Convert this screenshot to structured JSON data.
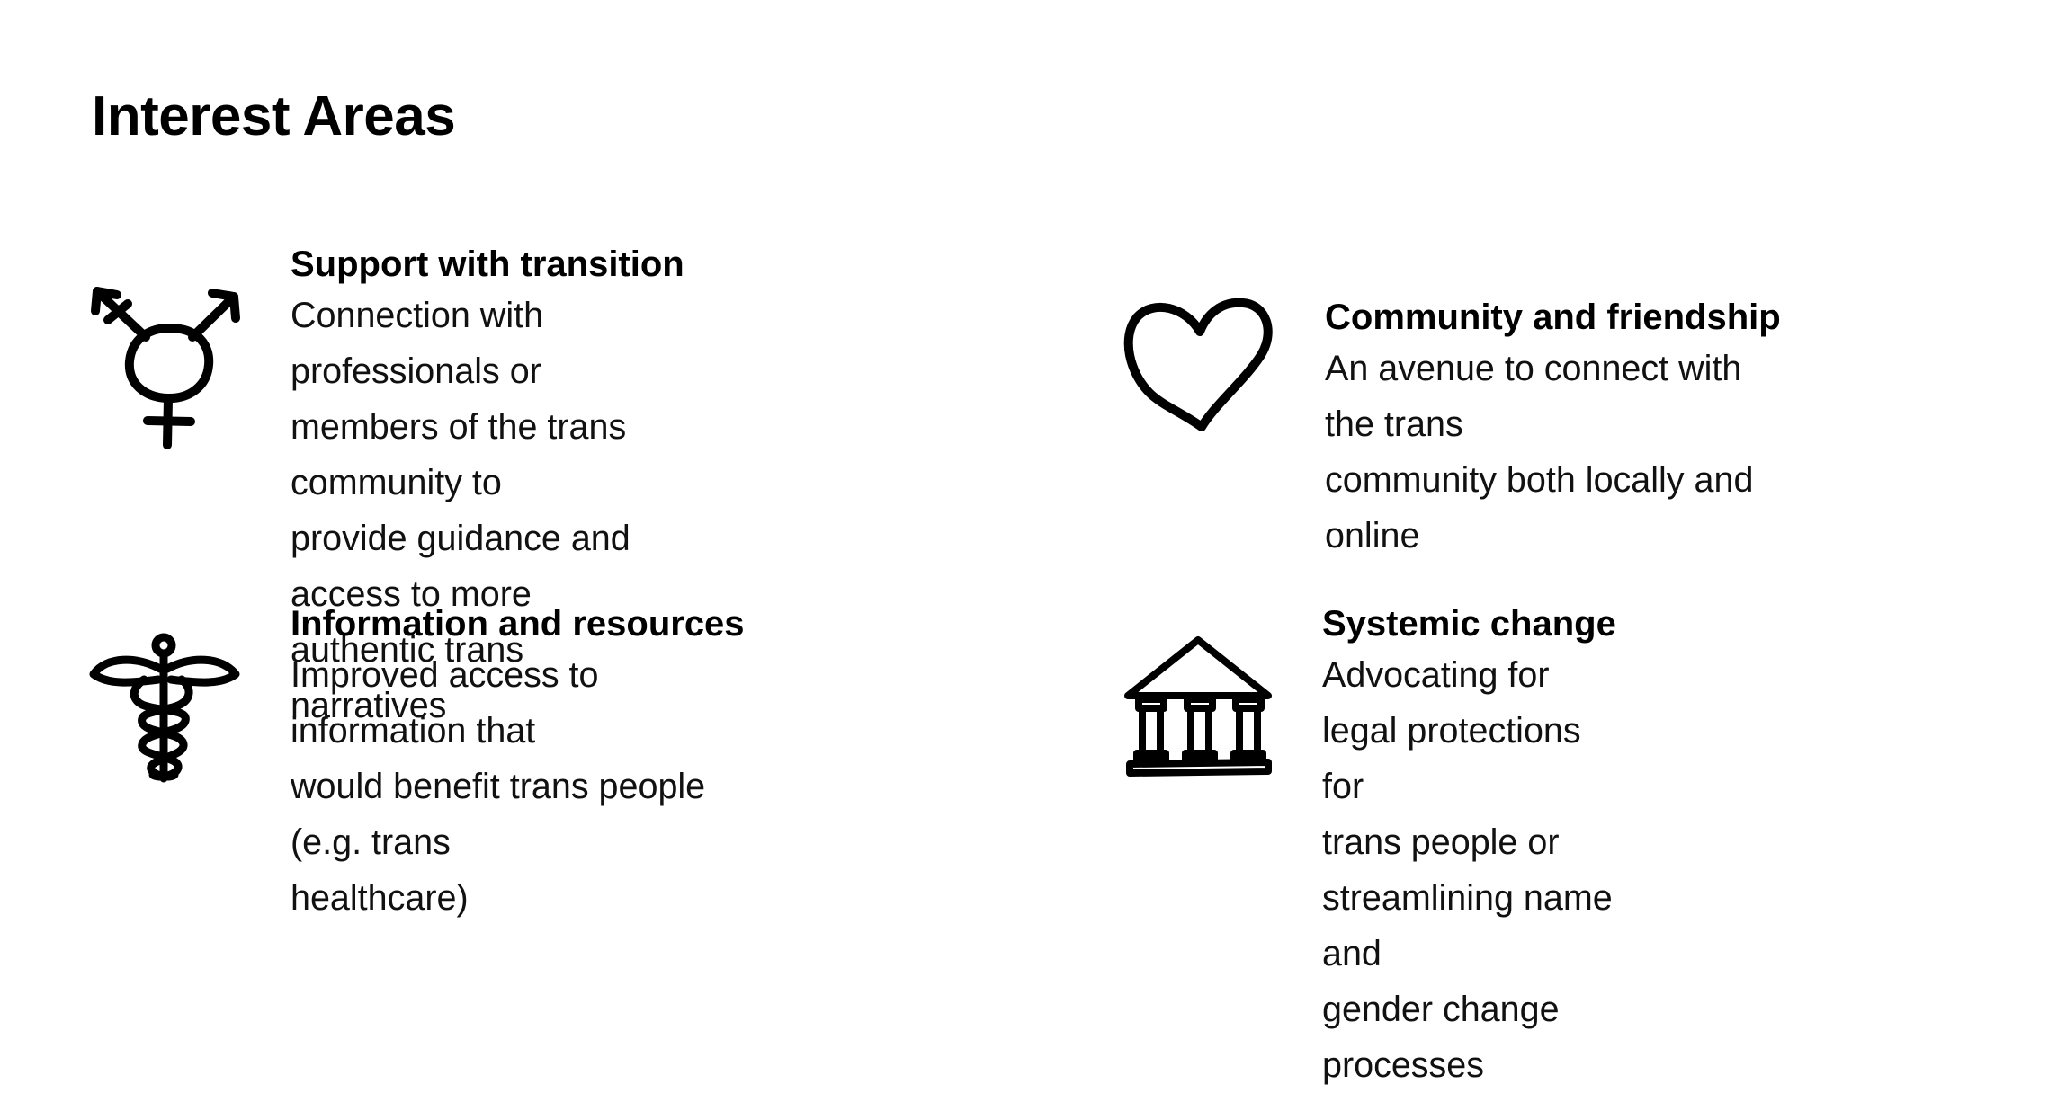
{
  "page": {
    "title": "Interest Areas"
  },
  "areas": [
    {
      "icon": "transgender-symbol-icon",
      "heading": "Support with transition",
      "lines": [
        "Connection with professionals or",
        "members of the trans community to",
        "provide guidance and access to more",
        "authentic trans narratives"
      ]
    },
    {
      "icon": "heart-icon",
      "heading": "Community and friendship",
      "lines": [
        "An avenue to connect with the trans",
        "community both locally and online"
      ]
    },
    {
      "icon": "caduceus-icon",
      "heading": "Information and resources",
      "lines": [
        "Improved access to information that",
        "would benefit trans people (e.g. trans",
        "healthcare)"
      ]
    },
    {
      "icon": "government-building-icon",
      "heading": "Systemic change",
      "lines": [
        "Advocating for legal protections for",
        "trans people or streamlining name and",
        "gender change processes"
      ]
    }
  ]
}
